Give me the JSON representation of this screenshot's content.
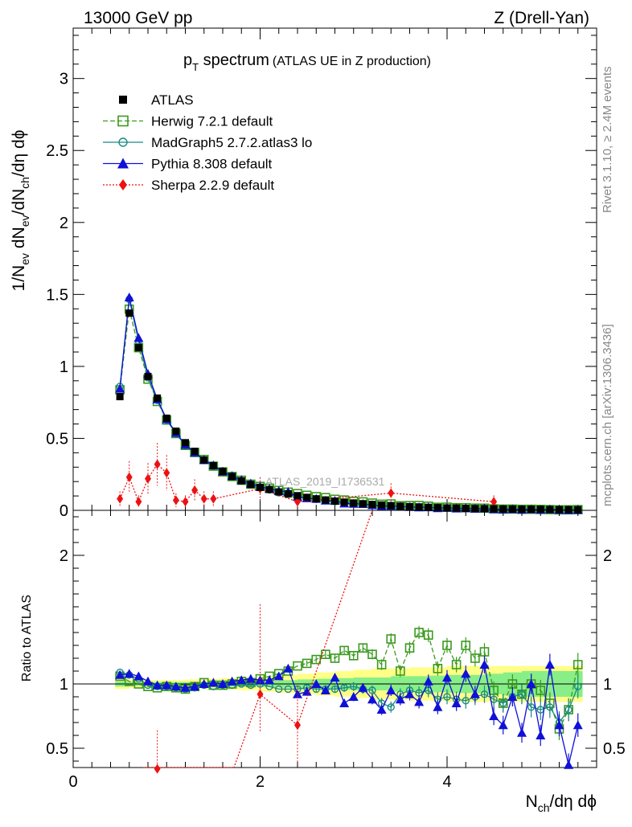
{
  "header": {
    "left": "13000 GeV pp",
    "right": "Z (Drell-Yan)"
  },
  "side_labels": {
    "rivet": "Rivet 3.1.10, ≥ 2.4M events",
    "mcplots": "mcplots.cern.ch [arXiv:1306.3436]"
  },
  "chart_data": {
    "type": "scatter",
    "title": "p",
    "title_sub": "T",
    "title_rest": " spectrum",
    "title_note": "(ATLAS UE in Z production)",
    "analysis_label": "ATLAS_2019_I1736531",
    "xlabel": "N",
    "xlabel_sub": "ch",
    "xlabel_rest": "/dη dϕ",
    "ylabel_main": "1/N_ev dN_ev/dN_ch/dη dϕ",
    "ylabel_ratio": "Ratio to ATLAS",
    "xlim": [
      0,
      5.6
    ],
    "ylim": [
      0,
      3.35
    ],
    "ratio_ylim": [
      0.35,
      2.35
    ],
    "x_ticks": [
      "0",
      "2",
      "4"
    ],
    "y_ticks": [
      "0",
      "0.5",
      "1",
      "1.5",
      "2",
      "2.5",
      "3"
    ],
    "ratio_ticks": [
      "0.5",
      "1",
      "2"
    ],
    "legend_position": "top-left",
    "data": {
      "name": "ATLAS",
      "x": [
        0.5,
        0.6,
        0.7,
        0.8,
        0.9,
        1.0,
        1.1,
        1.2,
        1.3,
        1.4,
        1.5,
        1.6,
        1.7,
        1.8,
        1.9,
        2.0,
        2.1,
        2.2,
        2.3,
        2.4,
        2.5,
        2.6,
        2.7,
        2.8,
        2.9,
        3.0,
        3.1,
        3.2,
        3.3,
        3.4,
        3.5,
        3.6,
        3.7,
        3.8,
        3.9,
        4.0,
        4.1,
        4.2,
        4.3,
        4.4,
        4.5,
        4.6,
        4.7,
        4.8,
        4.9,
        5.0,
        5.1,
        5.2,
        5.3,
        5.4
      ],
      "y": [
        0.79,
        1.37,
        1.13,
        0.93,
        0.78,
        0.64,
        0.55,
        0.47,
        0.41,
        0.35,
        0.31,
        0.27,
        0.235,
        0.205,
        0.18,
        0.16,
        0.145,
        0.128,
        0.115,
        0.102,
        0.09,
        0.08,
        0.072,
        0.064,
        0.057,
        0.051,
        0.046,
        0.041,
        0.037,
        0.033,
        0.029,
        0.026,
        0.024,
        0.021,
        0.019,
        0.017,
        0.016,
        0.014,
        0.013,
        0.012,
        0.011,
        0.01,
        0.009,
        0.008,
        0.0075,
        0.007,
        0.006,
        0.0055,
        0.005,
        0.0045
      ]
    },
    "band": {
      "x": [
        0.45,
        0.6,
        0.8,
        1.0,
        1.2,
        1.4,
        1.6,
        1.8,
        2.0,
        2.2,
        2.4,
        2.6,
        2.8,
        3.0,
        3.2,
        3.4,
        3.6,
        3.8,
        4.0,
        4.2,
        4.4,
        4.6,
        4.8,
        5.0,
        5.2,
        5.45
      ],
      "green_lo": [
        0.98,
        0.985,
        0.985,
        0.985,
        0.985,
        0.985,
        0.98,
        0.98,
        0.975,
        0.97,
        0.965,
        0.96,
        0.955,
        0.95,
        0.95,
        0.94,
        0.94,
        0.935,
        0.93,
        0.93,
        0.92,
        0.91,
        0.9,
        0.9,
        0.9,
        0.9
      ],
      "green_hi": [
        1.02,
        1.015,
        1.015,
        1.015,
        1.015,
        1.015,
        1.02,
        1.02,
        1.025,
        1.03,
        1.035,
        1.04,
        1.045,
        1.05,
        1.05,
        1.06,
        1.06,
        1.065,
        1.07,
        1.07,
        1.08,
        1.09,
        1.1,
        1.1,
        1.1,
        1.1
      ],
      "yellow_lo": [
        0.96,
        0.97,
        0.97,
        0.97,
        0.965,
        0.96,
        0.955,
        0.95,
        0.94,
        0.93,
        0.92,
        0.91,
        0.9,
        0.89,
        0.88,
        0.88,
        0.87,
        0.87,
        0.86,
        0.86,
        0.86,
        0.86,
        0.86,
        0.86,
        0.86,
        0.86
      ],
      "yellow_hi": [
        1.04,
        1.03,
        1.03,
        1.03,
        1.035,
        1.04,
        1.045,
        1.05,
        1.06,
        1.07,
        1.08,
        1.09,
        1.1,
        1.11,
        1.12,
        1.12,
        1.13,
        1.13,
        1.14,
        1.14,
        1.14,
        1.14,
        1.14,
        1.14,
        1.14,
        1.14
      ]
    },
    "series": [
      {
        "name": "Herwig 7.2.1 default",
        "color": "#3a9a1e",
        "marker": "open-square",
        "linestyle": "dashed",
        "ratio": [
          1.06,
          1.02,
          1.0,
          0.98,
          0.97,
          0.98,
          0.97,
          0.96,
          0.98,
          1.01,
          0.99,
          0.99,
          1.0,
          1.02,
          1.01,
          1.04,
          1.06,
          1.08,
          1.1,
          1.14,
          1.16,
          1.19,
          1.23,
          1.2,
          1.26,
          1.22,
          1.28,
          1.23,
          1.15,
          1.35,
          1.1,
          1.28,
          1.4,
          1.38,
          1.12,
          1.3,
          1.15,
          1.3,
          1.2,
          1.25,
          0.95,
          0.85,
          1.0,
          0.92,
          1.0,
          0.95,
          0.85,
          0.65,
          0.8,
          1.15
        ]
      },
      {
        "name": "MadGraph5 2.7.2.atlas3 lo",
        "color": "#1a8a82",
        "marker": "open-circle",
        "linestyle": "solid",
        "ratio": [
          1.09,
          1.07,
          1.04,
          0.99,
          0.98,
          0.98,
          0.97,
          0.96,
          0.97,
          0.99,
          0.98,
          0.99,
          0.99,
          1.0,
          0.99,
          1.0,
          0.98,
          0.96,
          0.96,
          0.96,
          0.97,
          0.96,
          0.96,
          0.96,
          0.97,
          0.98,
          0.96,
          0.95,
          0.85,
          0.82,
          0.92,
          0.95,
          0.93,
          0.95,
          0.88,
          0.9,
          0.88,
          0.87,
          0.9,
          0.92,
          0.88,
          0.85,
          0.9,
          0.92,
          0.82,
          0.8,
          0.82,
          0.7,
          0.8,
          0.98
        ]
      },
      {
        "name": "Pythia 8.308 default",
        "color": "#1010d8",
        "marker": "filled-triangle",
        "linestyle": "solid",
        "ratio": [
          1.07,
          1.08,
          1.06,
          1.02,
          0.99,
          0.99,
          0.98,
          0.97,
          0.98,
          1.0,
          1.01,
          1.0,
          1.02,
          1.03,
          1.04,
          1.03,
          1.03,
          1.06,
          1.12,
          0.92,
          0.94,
          1.0,
          0.95,
          1.05,
          0.85,
          0.9,
          0.97,
          0.88,
          0.8,
          0.95,
          0.88,
          0.92,
          0.86,
          1.02,
          0.82,
          1.05,
          0.85,
          1.08,
          0.92,
          1.15,
          0.75,
          0.68,
          0.9,
          0.62,
          1.0,
          0.6,
          1.15,
          0.68,
          0.37,
          0.68
        ]
      },
      {
        "name": "Sherpa 2.2.9 default",
        "color": "#ee1111",
        "marker": "filled-diamond",
        "linestyle": "dotted",
        "x": [
          0.5,
          0.6,
          0.7,
          0.8,
          0.9,
          1.0,
          1.1,
          1.2,
          1.3,
          1.4,
          1.5,
          2.0,
          2.4,
          3.4,
          4.5
        ],
        "y": [
          0.08,
          0.23,
          0.06,
          0.22,
          0.32,
          0.26,
          0.07,
          0.06,
          0.14,
          0.08,
          0.08,
          0.15,
          0.06,
          0.12,
          0.06
        ],
        "ratio_points": [
          [
            0.9,
            0.34
          ],
          [
            2.0,
            0.92
          ],
          [
            2.4,
            0.68
          ]
        ]
      }
    ]
  }
}
